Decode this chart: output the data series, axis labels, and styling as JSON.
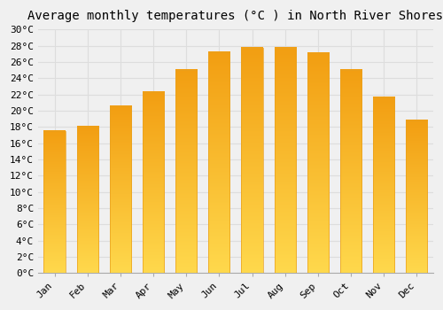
{
  "title": "Average monthly temperatures (°C ) in North River Shores",
  "months": [
    "Jan",
    "Feb",
    "Mar",
    "Apr",
    "May",
    "Jun",
    "Jul",
    "Aug",
    "Sep",
    "Oct",
    "Nov",
    "Dec"
  ],
  "values": [
    17.5,
    18.0,
    20.5,
    22.3,
    25.0,
    27.2,
    27.7,
    27.7,
    27.1,
    25.0,
    21.6,
    18.8
  ],
  "bar_color_top": "#F5A623",
  "bar_color_bottom": "#FFD966",
  "background_color": "#F0F0F0",
  "grid_color": "#DDDDDD",
  "ylim": [
    0,
    30
  ],
  "ytick_step": 2,
  "title_fontsize": 10,
  "tick_fontsize": 8,
  "font_family": "monospace",
  "bar_width": 0.65
}
